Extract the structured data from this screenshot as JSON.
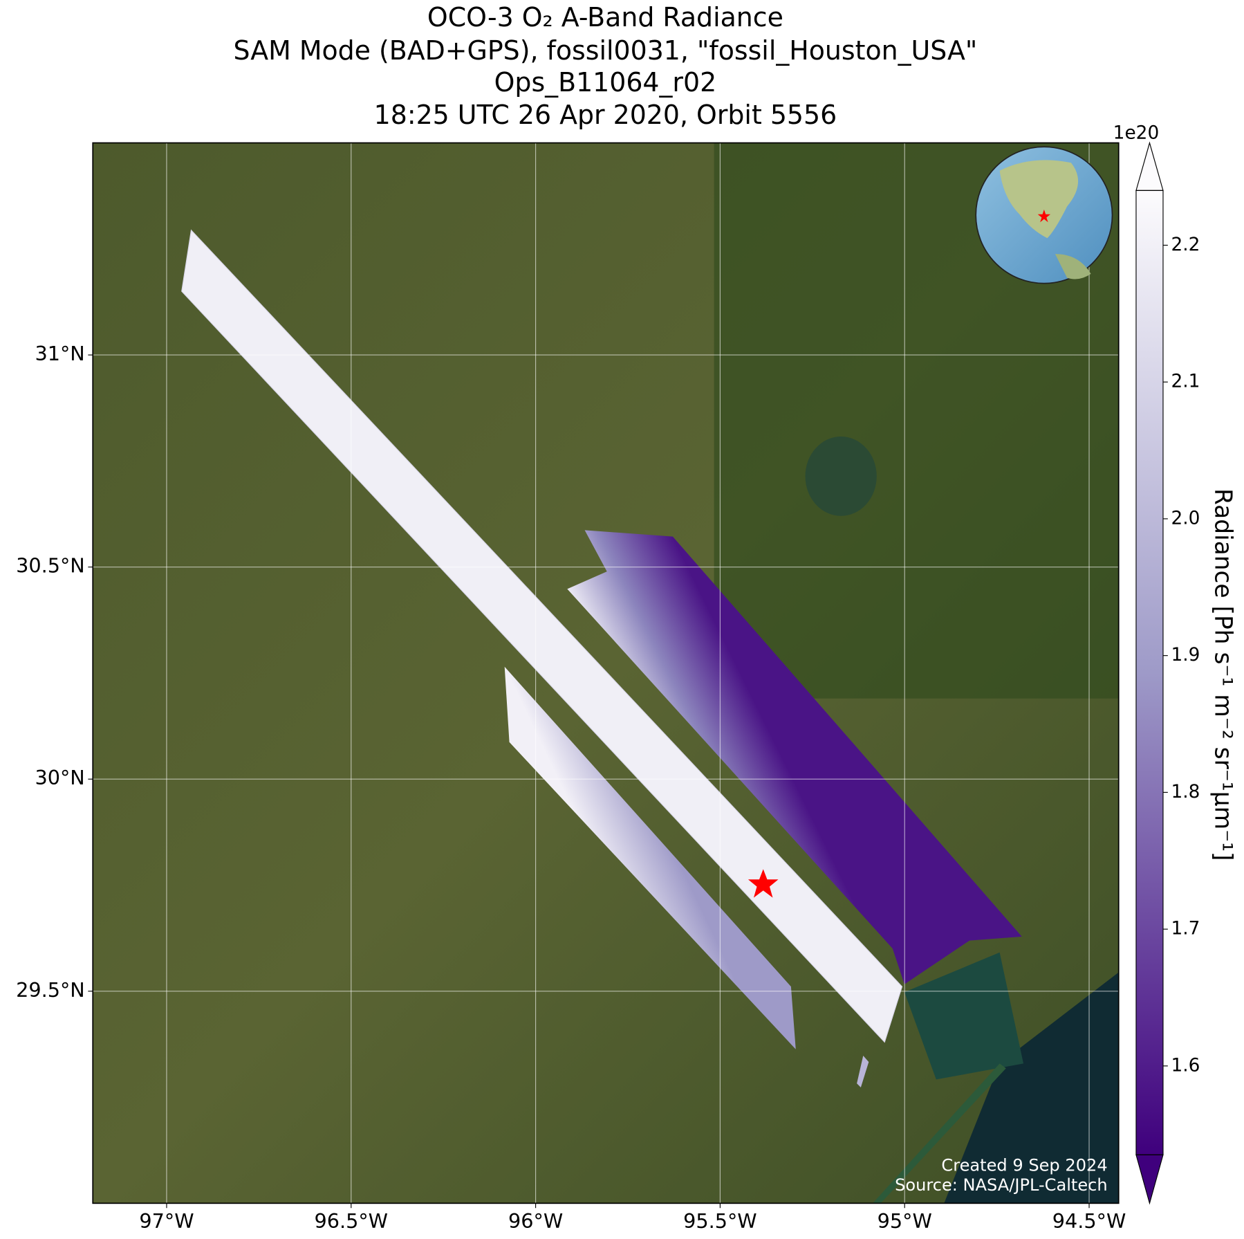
{
  "chart_data": {
    "type": "map",
    "title": [
      "OCO-3 O₂ A-Band Radiance",
      "SAM Mode (BAD+GPS), fossil0031, \"fossil_Houston_USA\"",
      "Ops_B11064_r02",
      "18:25 UTC 26 Apr 2020, Orbit 5556"
    ],
    "xlim": [
      -97.2,
      -94.42
    ],
    "xticks": [
      {
        "value": -97,
        "label": "97°W"
      },
      {
        "value": -96.5,
        "label": "96.5°W"
      },
      {
        "value": -96,
        "label": "96°W"
      },
      {
        "value": -95.5,
        "label": "95.5°W"
      },
      {
        "value": -95,
        "label": "95°W"
      },
      {
        "value": -94.5,
        "label": "94.5°W"
      }
    ],
    "ylim": [
      29.0,
      31.5
    ],
    "yticks": [
      {
        "value": 29.5,
        "label": "29.5°N"
      },
      {
        "value": 30,
        "label": "30°N"
      },
      {
        "value": 30.5,
        "label": "30.5°N"
      },
      {
        "value": 31,
        "label": "31°N"
      }
    ],
    "grid": true,
    "colorbar": {
      "label": "Radiance [Ph s⁻¹ m⁻² sr⁻¹μm⁻¹]",
      "multiplier": "1e20",
      "lim": [
        1.535,
        2.24
      ],
      "ticks": [
        1.6,
        1.7,
        1.8,
        1.9,
        {
          "value": 2,
          "label": "2.0"
        },
        2.1,
        2.2
      ],
      "colors": [
        "#3f007d",
        "#9e9ac8",
        "#fcfbfd"
      ]
    },
    "credits": [
      "Created 9 Sep 2024",
      "Source: NASA/JPL-Caltech"
    ]
  }
}
